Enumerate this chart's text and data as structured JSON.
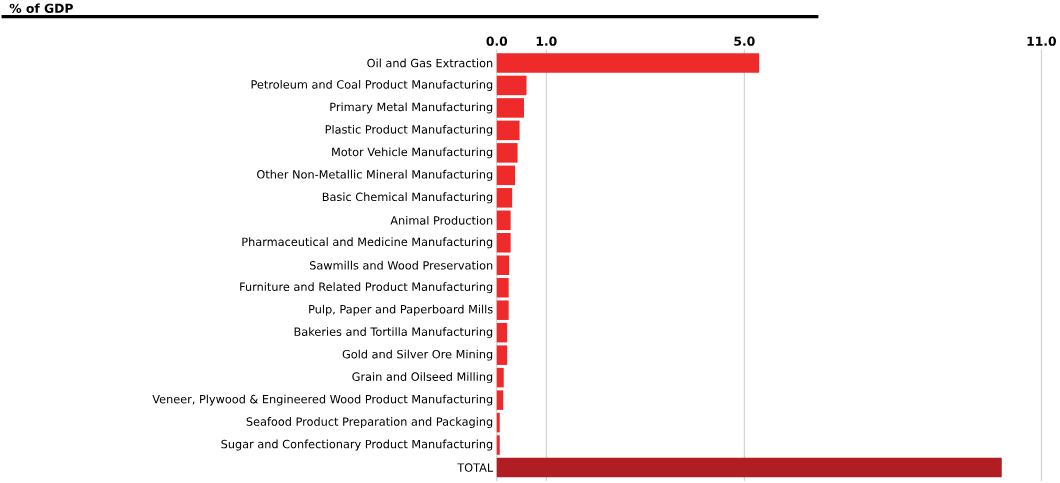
{
  "chart_data": {
    "type": "bar",
    "orientation": "horizontal",
    "title": "% of GDP",
    "categories": [
      "Oil and Gas Extraction",
      "Petroleum and Coal Product Manufacturing",
      "Primary Metal Manufacturing",
      "Plastic Product Manufacturing",
      "Motor Vehicle Manufacturing",
      "Other Non-Metallic Mineral Manufacturing",
      "Basic Chemical Manufacturing",
      "Animal Production",
      "Pharmaceutical and Medicine Manufacturing",
      "Sawmills and Wood Preservation",
      "Furniture and Related Product Manufacturing",
      "Pulp, Paper and Paperboard Mills",
      "Bakeries and Tortilla Manufacturing",
      "Gold and Silver Ore Mining",
      "Grain and Oilseed Milling",
      "Veneer, Plywood & Engineered Wood Product Manufacturing",
      "Seafood Product Preparation and Packaging",
      "Sugar and Confectionary Product Manufacturing",
      "TOTAL"
    ],
    "values": [
      5.3,
      0.6,
      0.55,
      0.46,
      0.42,
      0.37,
      0.31,
      0.28,
      0.28,
      0.25,
      0.24,
      0.24,
      0.21,
      0.21,
      0.14,
      0.13,
      0.06,
      0.06,
      10.2
    ],
    "colors": [
      "#ee2a2a",
      "#ee2a2a",
      "#ee2a2a",
      "#ee2a2a",
      "#ee2a2a",
      "#ee2a2a",
      "#ee2a2a",
      "#ee2a2a",
      "#ee2a2a",
      "#ee2a2a",
      "#ee2a2a",
      "#ee2a2a",
      "#ee2a2a",
      "#ee2a2a",
      "#ee2a2a",
      "#ee2a2a",
      "#ee2a2a",
      "#ee2a2a",
      "#b01e23"
    ],
    "xlim": [
      0,
      11
    ],
    "xticks": [
      {
        "value": 0,
        "label": "0.0"
      },
      {
        "value": 1,
        "label": "1.0"
      },
      {
        "value": 5,
        "label": "5.0"
      },
      {
        "value": 11,
        "label": "11.0"
      }
    ],
    "grid": "x"
  }
}
